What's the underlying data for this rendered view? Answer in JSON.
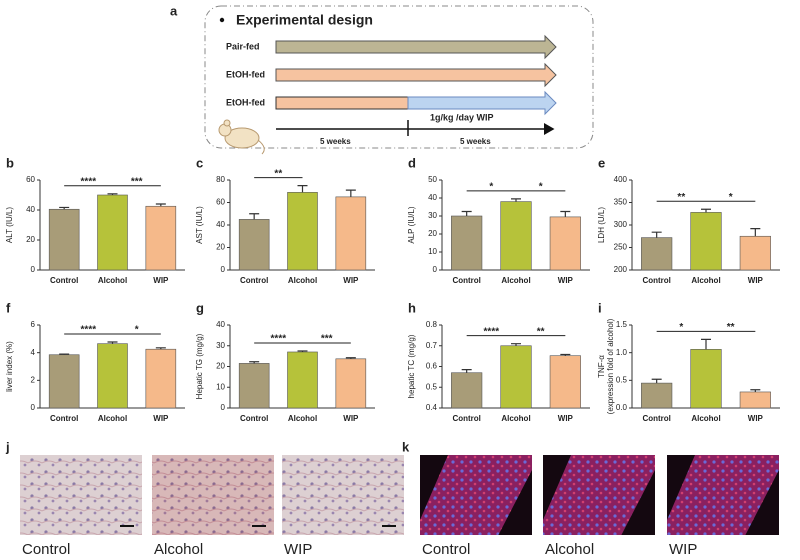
{
  "design": {
    "panel": "a",
    "title": "Experimental design",
    "groups": [
      "Pair-fed",
      "EtOH-fed",
      "EtOH-fed"
    ],
    "treatment": "1g/kg /day WIP",
    "periods": [
      "5 weeks",
      "5 weeks"
    ]
  },
  "chart_data": [
    {
      "type": "bar",
      "panel": "b",
      "y_label": "ALT (IU/L)",
      "categories": [
        "Control",
        "Alcohol",
        "WIP"
      ],
      "values": [
        40.5,
        50,
        42.5
      ],
      "errors": [
        1.2,
        0.8,
        1.5
      ],
      "colors": [
        "#a89c78",
        "#b6c23a",
        "#f5b98a"
      ],
      "ylim": [
        0,
        60
      ],
      "yticks": [
        0,
        20,
        40,
        60
      ],
      "annotations": [
        "****",
        "***"
      ]
    },
    {
      "type": "bar",
      "panel": "c",
      "y_label": "AST (IU/L)",
      "categories": [
        "Control",
        "Alcohol",
        "WIP"
      ],
      "values": [
        45,
        69,
        65
      ],
      "errors": [
        5,
        6,
        6
      ],
      "colors": [
        "#a89c78",
        "#b6c23a",
        "#f5b98a"
      ],
      "ylim": [
        0,
        80
      ],
      "yticks": [
        0,
        20,
        40,
        60,
        80
      ],
      "annotations": [
        "**"
      ]
    },
    {
      "type": "bar",
      "panel": "d",
      "y_label": "ALP (IU/L)",
      "categories": [
        "Control",
        "Alcohol",
        "WIP"
      ],
      "values": [
        30,
        38,
        29.5
      ],
      "errors": [
        2.5,
        1.5,
        3
      ],
      "colors": [
        "#a89c78",
        "#b6c23a",
        "#f5b98a"
      ],
      "ylim": [
        0,
        50
      ],
      "yticks": [
        0,
        10,
        20,
        30,
        40,
        50
      ],
      "annotations": [
        "*",
        "*"
      ]
    },
    {
      "type": "bar",
      "panel": "e",
      "y_label": "LDH (U/L)",
      "categories": [
        "Control",
        "Alcohol",
        "WIP"
      ],
      "values": [
        272,
        328,
        275
      ],
      "errors": [
        12,
        7,
        17
      ],
      "colors": [
        "#a89c78",
        "#b6c23a",
        "#f5b98a"
      ],
      "ylim": [
        200,
        400
      ],
      "yticks": [
        200,
        250,
        300,
        350,
        400
      ],
      "annotations": [
        "**",
        "*"
      ]
    },
    {
      "type": "bar",
      "panel": "f",
      "y_label": "liver index (%)",
      "categories": [
        "Control",
        "Alcohol",
        "WIP"
      ],
      "values": [
        3.85,
        4.65,
        4.25
      ],
      "errors": [
        0.05,
        0.12,
        0.1
      ],
      "colors": [
        "#a89c78",
        "#b6c23a",
        "#f5b98a"
      ],
      "ylim": [
        0,
        6
      ],
      "yticks": [
        0,
        2,
        4,
        6
      ],
      "annotations": [
        "****",
        "*"
      ]
    },
    {
      "type": "bar",
      "panel": "g",
      "y_label": "Hepatic TG (mg/g)",
      "categories": [
        "Control",
        "Alcohol",
        "WIP"
      ],
      "values": [
        21.5,
        27,
        23.7
      ],
      "errors": [
        0.8,
        0.5,
        0.5
      ],
      "colors": [
        "#a89c78",
        "#b6c23a",
        "#f5b98a"
      ],
      "ylim": [
        0,
        40
      ],
      "yticks": [
        0,
        10,
        20,
        30,
        40
      ],
      "annotations": [
        "****",
        "***"
      ]
    },
    {
      "type": "bar",
      "panel": "h",
      "y_label": "hepatic TC (mg/g)",
      "categories": [
        "Control",
        "Alcohol",
        "WIP"
      ],
      "values": [
        0.57,
        0.7,
        0.652
      ],
      "errors": [
        0.015,
        0.01,
        0.006
      ],
      "colors": [
        "#a89c78",
        "#b6c23a",
        "#f5b98a"
      ],
      "ylim": [
        0.4,
        0.8
      ],
      "yticks": [
        0.4,
        0.5,
        0.6,
        0.7,
        0.8
      ],
      "annotations": [
        "****",
        "**"
      ]
    },
    {
      "type": "bar",
      "panel": "i",
      "y_label": [
        "TNF-α",
        "(expression fold of alcohol)"
      ],
      "categories": [
        "Control",
        "Alcohol",
        "WIP"
      ],
      "values": [
        0.45,
        1.06,
        0.29
      ],
      "errors": [
        0.07,
        0.18,
        0.04
      ],
      "colors": [
        "#a89c78",
        "#b6c23a",
        "#f5b98a"
      ],
      "ylim": [
        0,
        1.5
      ],
      "yticks": [
        {
          "value": 0,
          "label": "0.0"
        },
        {
          "value": 0.5,
          "label": "0.5"
        },
        {
          "value": 1,
          "label": "1.0"
        },
        {
          "value": 1.5,
          "label": "1.5"
        }
      ],
      "annotations": [
        "*",
        "**"
      ]
    }
  ],
  "images": [
    {
      "panel": "j",
      "labels": [
        "Control",
        "Alcohol",
        "WIP"
      ]
    },
    {
      "panel": "k",
      "labels": [
        "Control",
        "Alcohol",
        "WIP"
      ]
    }
  ]
}
